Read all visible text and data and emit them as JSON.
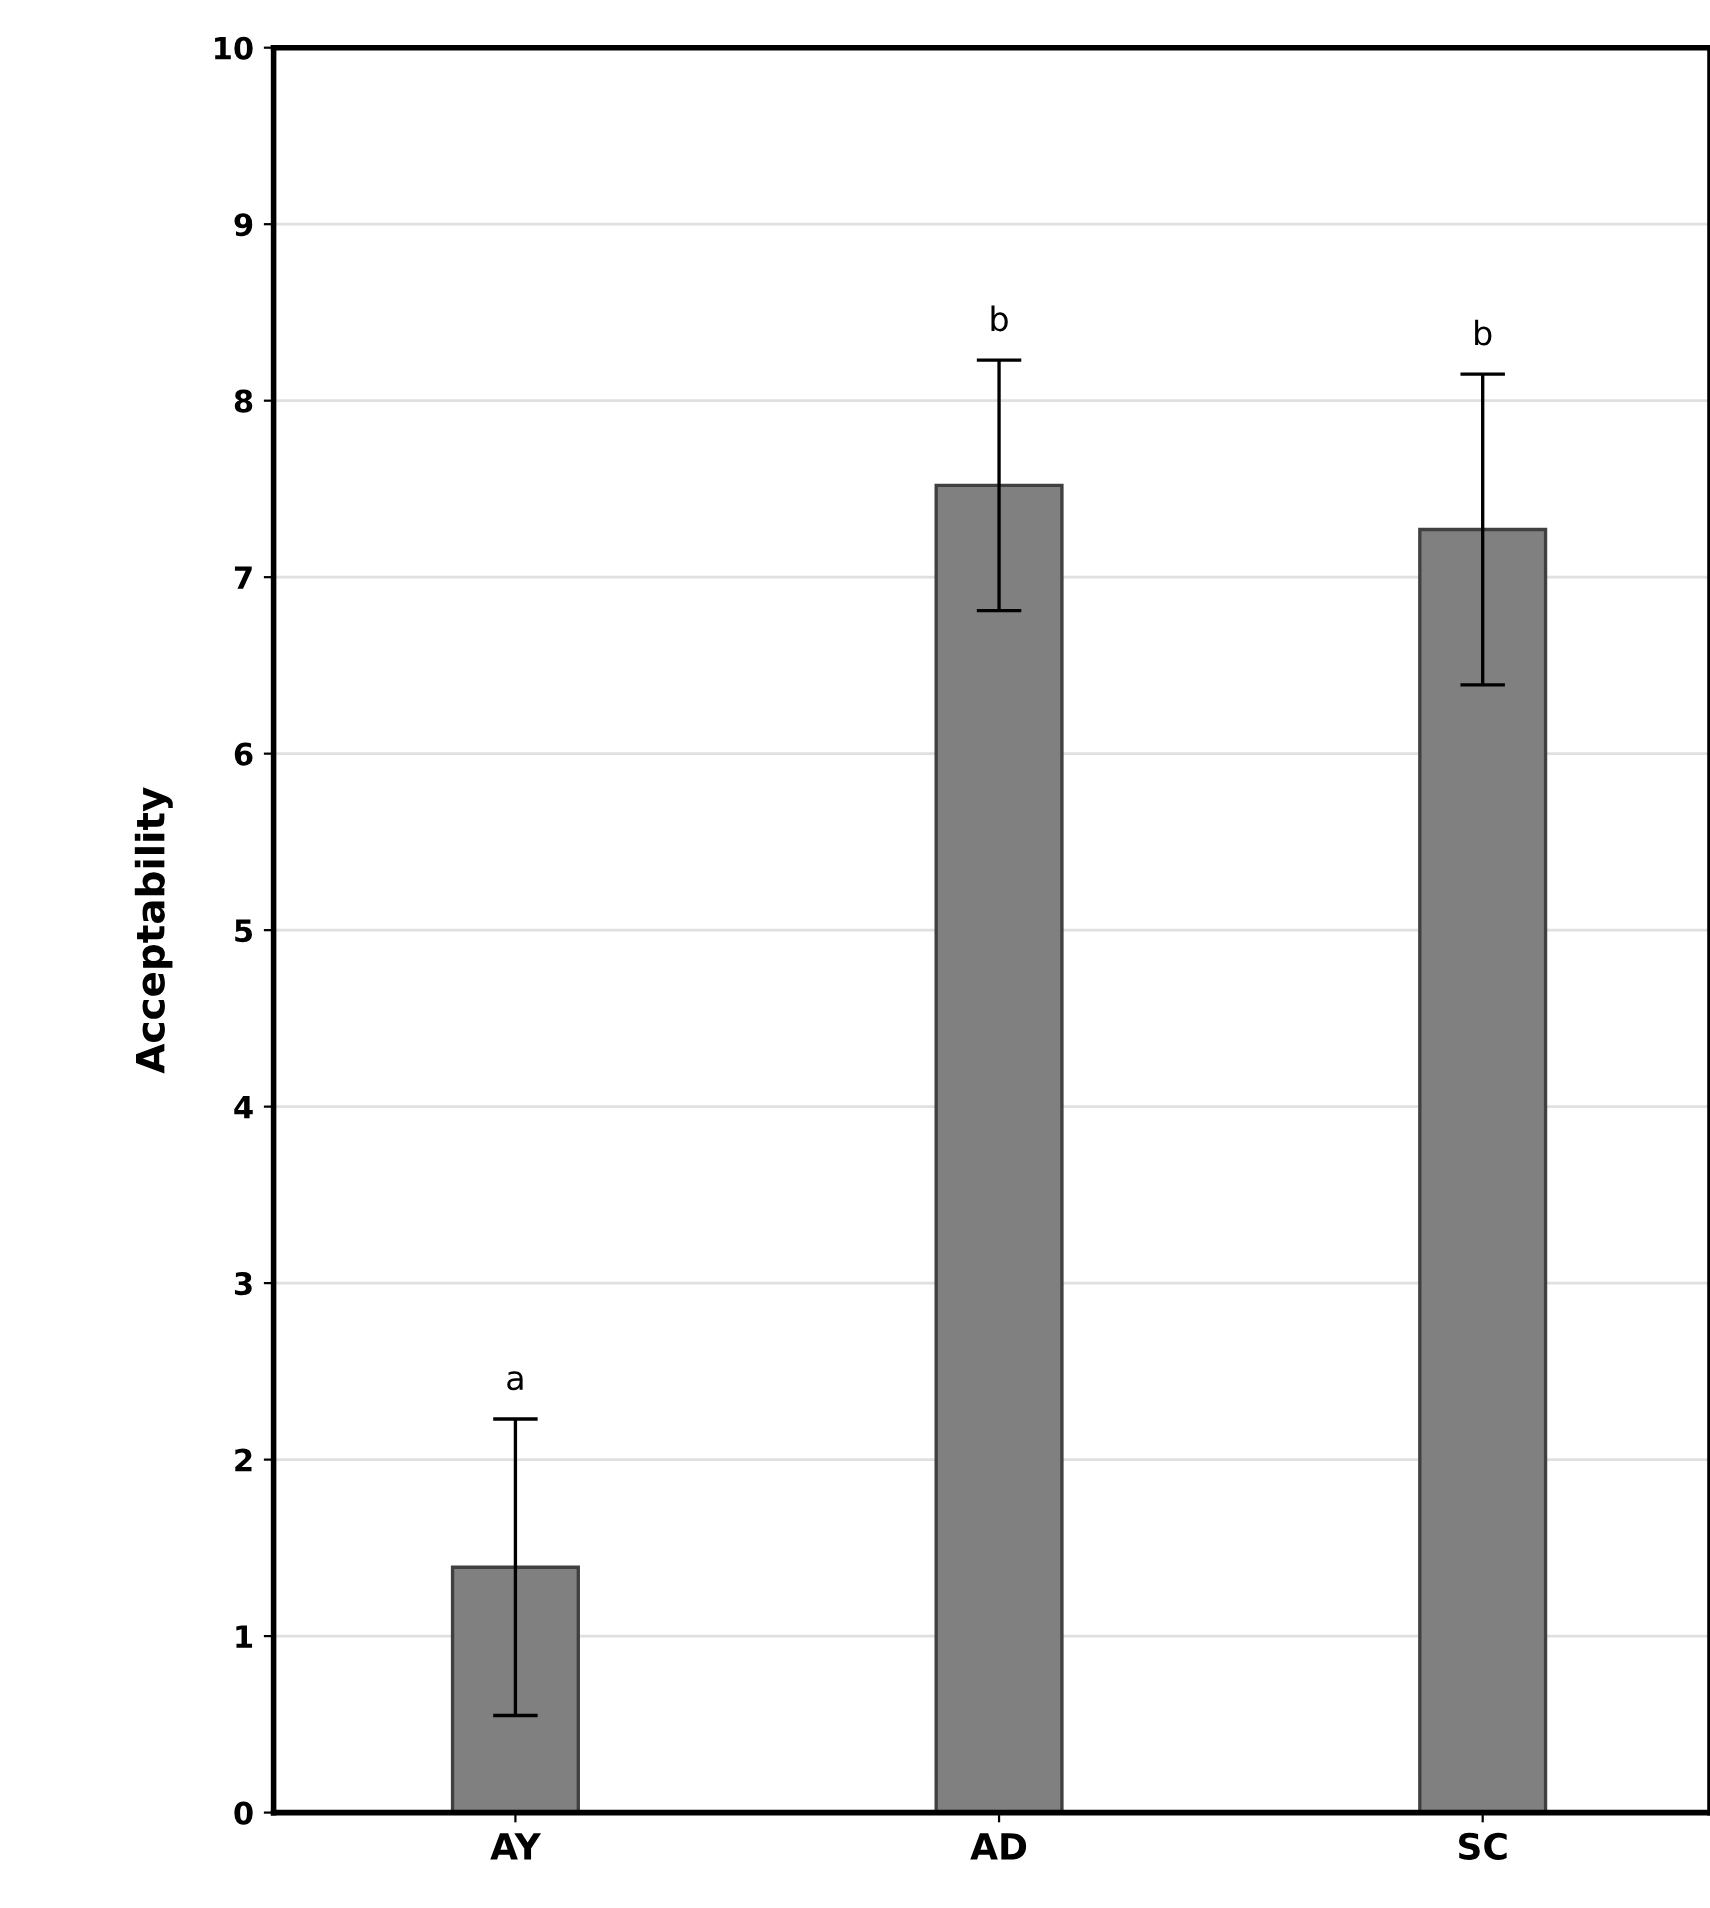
{
  "chart_data": {
    "type": "bar",
    "ylabel": "Acceptability",
    "categories": [
      "AY",
      "AD",
      "SC"
    ],
    "values": [
      1.39,
      7.52,
      7.27
    ],
    "errors": [
      0.84,
      0.71,
      0.88
    ],
    "color": "#808080",
    "ylim": [
      0,
      10
    ],
    "yticks": [
      0,
      1,
      2,
      3,
      4,
      5,
      6,
      7,
      8,
      9,
      10
    ],
    "grid": "y",
    "annotations": [
      {
        "text": "a",
        "x": "AY",
        "y": 2.23
      },
      {
        "text": "b",
        "x": "AD",
        "y": 8.23
      },
      {
        "text": "b",
        "x": "SC",
        "y": 8.15
      }
    ]
  }
}
